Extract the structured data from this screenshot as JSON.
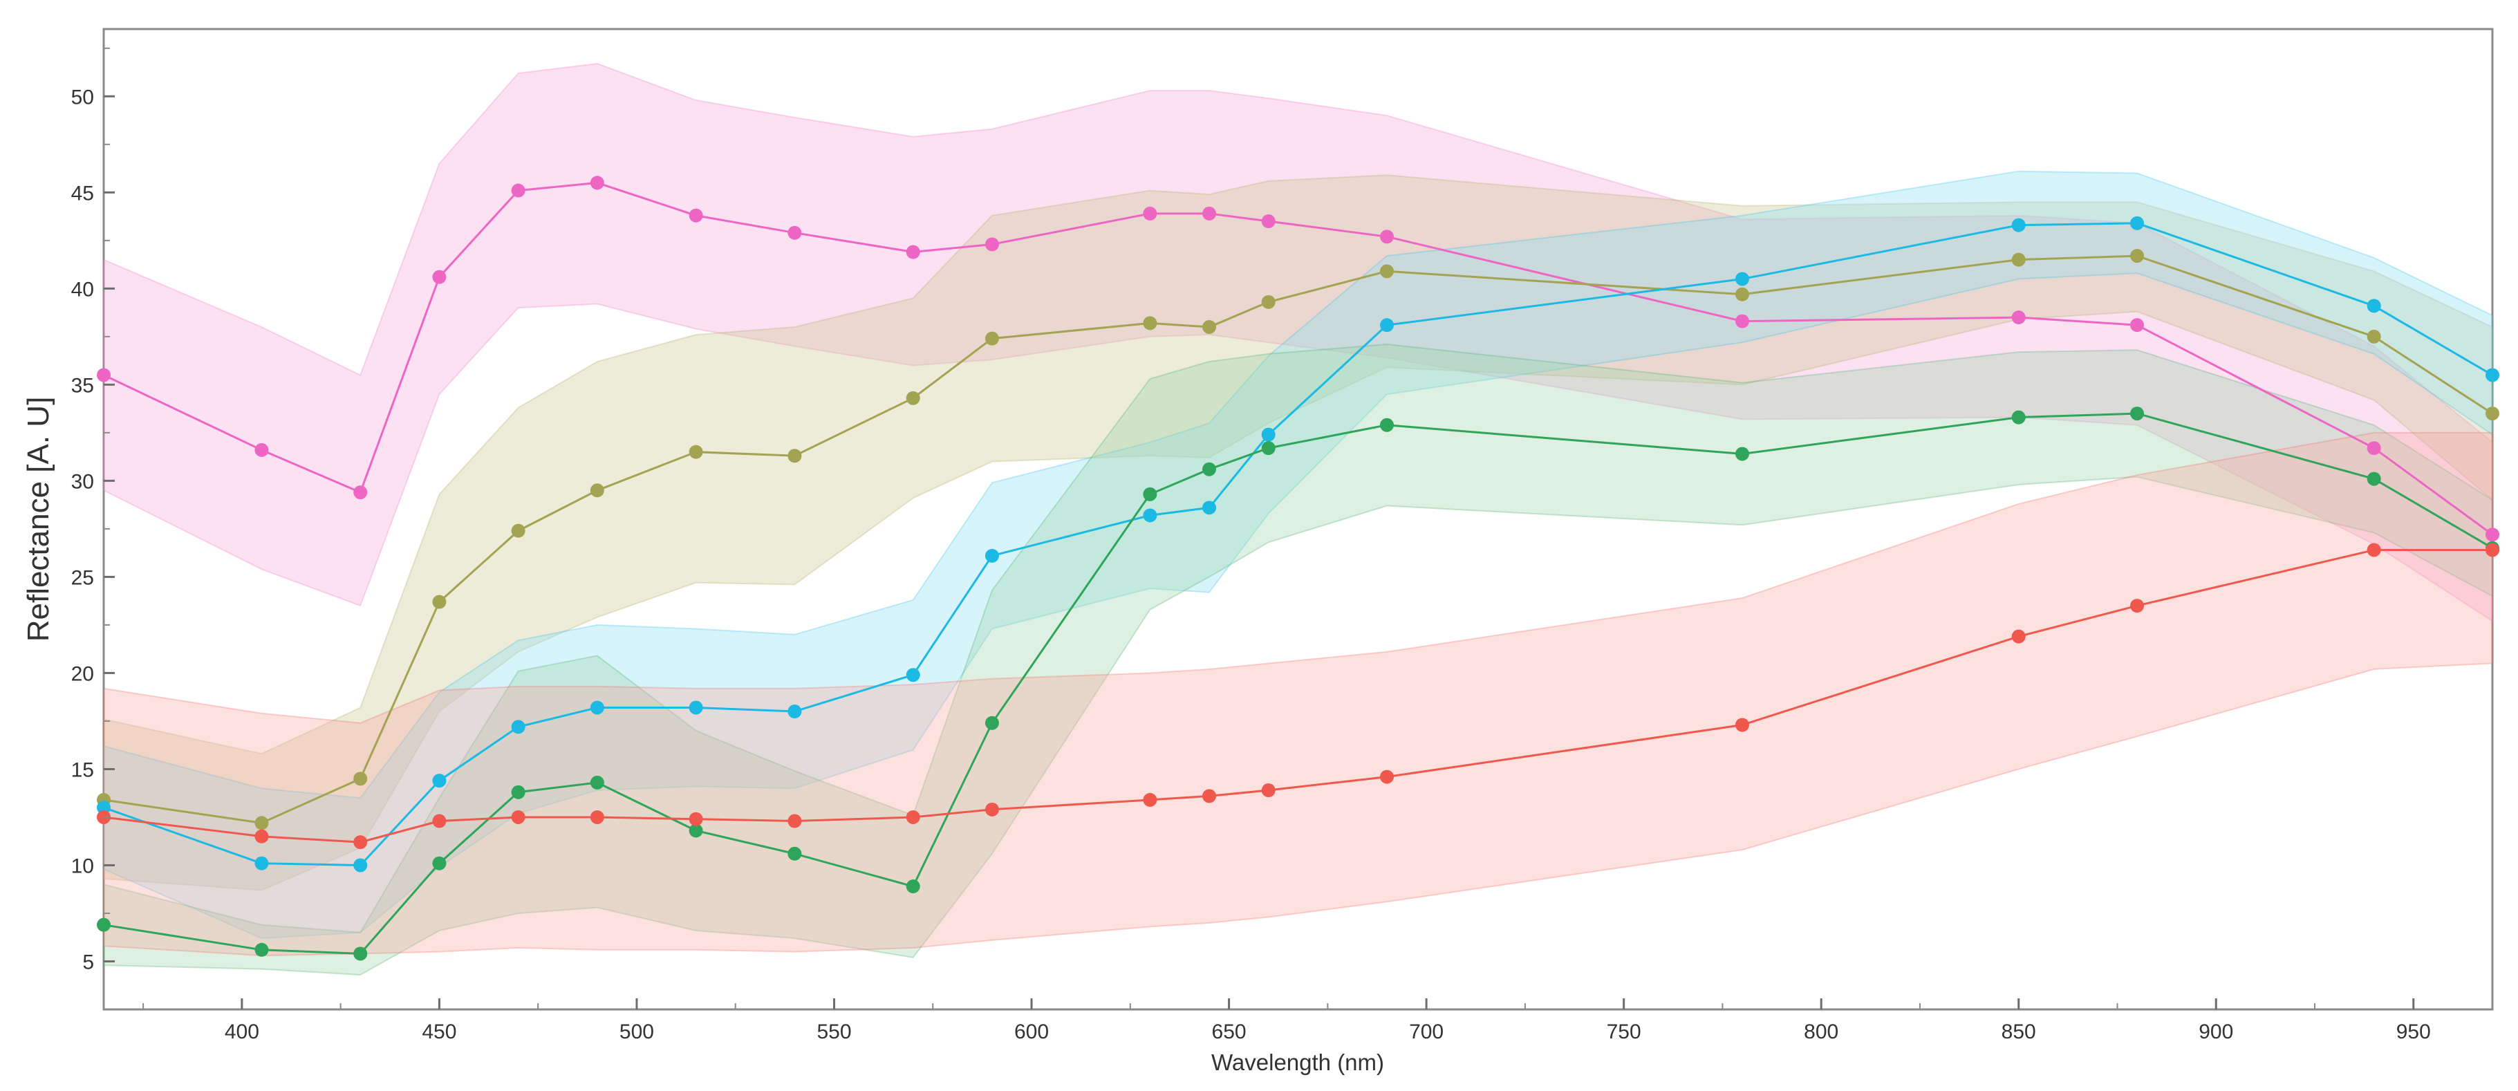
{
  "chart_data": {
    "type": "line",
    "title": "",
    "xlabel": "Wavelength (nm)",
    "ylabel": "Reflectance [A. U]",
    "xlim": [
      365,
      970
    ],
    "ylim": [
      2.5,
      53.5
    ],
    "x_ticks": [
      400,
      450,
      500,
      550,
      600,
      650,
      700,
      750,
      800,
      850,
      900,
      950
    ],
    "y_ticks": [
      5,
      10,
      15,
      20,
      25,
      30,
      35,
      40,
      45,
      50
    ],
    "grid": false,
    "legend": "none",
    "series": [
      {
        "name": "pink",
        "color": "#ee66c4",
        "fill": "#f7a8dc",
        "x": [
          365,
          405,
          430,
          450,
          470,
          490,
          515,
          540,
          570,
          590,
          630,
          645,
          660,
          690,
          780,
          850,
          880,
          940,
          970
        ],
        "y": [
          35.5,
          31.6,
          29.4,
          40.6,
          45.1,
          45.5,
          43.8,
          42.9,
          41.9,
          42.3,
          43.9,
          43.9,
          43.5,
          42.7,
          38.3,
          38.5,
          38.1,
          31.7,
          27.2
        ],
        "upper": [
          41.5,
          38.0,
          35.5,
          46.5,
          51.2,
          51.7,
          49.8,
          48.9,
          47.9,
          48.3,
          50.3,
          50.3,
          49.9,
          49.0,
          43.6,
          43.8,
          43.4,
          37.0,
          32.0
        ],
        "lower": [
          29.5,
          25.4,
          23.5,
          34.5,
          39.0,
          39.2,
          37.9,
          37.0,
          36.0,
          36.3,
          37.5,
          37.6,
          37.2,
          36.4,
          33.2,
          33.3,
          32.9,
          26.7,
          22.7
        ]
      },
      {
        "name": "olive",
        "color": "#a3a452",
        "fill": "#c8c88e",
        "x": [
          365,
          405,
          430,
          450,
          470,
          490,
          515,
          540,
          570,
          590,
          630,
          645,
          660,
          690,
          780,
          850,
          880,
          940,
          970
        ],
        "y": [
          13.4,
          12.2,
          14.5,
          23.7,
          27.4,
          29.5,
          31.5,
          31.3,
          34.3,
          37.4,
          38.2,
          38.0,
          39.3,
          40.9,
          39.7,
          41.5,
          41.7,
          37.5,
          33.5
        ],
        "upper": [
          17.6,
          15.8,
          18.2,
          29.3,
          33.8,
          36.2,
          37.6,
          38.0,
          39.5,
          43.8,
          45.1,
          44.9,
          45.6,
          45.9,
          44.3,
          44.5,
          44.5,
          40.9,
          38.0
        ],
        "lower": [
          9.3,
          8.7,
          10.9,
          18.0,
          21.1,
          22.9,
          24.7,
          24.6,
          29.1,
          31.0,
          31.3,
          31.2,
          33.0,
          35.9,
          35.0,
          38.4,
          38.8,
          34.2,
          29.0
        ]
      },
      {
        "name": "cyan",
        "color": "#1bb9e3",
        "fill": "#8fe0f4",
        "x": [
          365,
          405,
          430,
          450,
          470,
          490,
          515,
          540,
          570,
          590,
          630,
          645,
          660,
          690,
          780,
          850,
          880,
          940,
          970
        ],
        "y": [
          13.0,
          10.1,
          10.0,
          14.4,
          17.2,
          18.2,
          18.2,
          18.0,
          19.9,
          26.1,
          28.2,
          28.6,
          32.4,
          38.1,
          40.5,
          43.3,
          43.4,
          39.1,
          35.5
        ],
        "upper": [
          16.2,
          14.0,
          13.5,
          19.0,
          21.7,
          22.5,
          22.3,
          22.0,
          23.8,
          29.9,
          32.0,
          33.0,
          36.5,
          41.7,
          43.8,
          46.1,
          46.0,
          41.6,
          38.6
        ],
        "lower": [
          9.8,
          6.2,
          6.5,
          9.9,
          12.7,
          13.9,
          14.1,
          14.0,
          16.0,
          22.3,
          24.4,
          24.2,
          28.3,
          34.5,
          37.2,
          40.5,
          40.8,
          36.6,
          32.4
        ]
      },
      {
        "name": "green",
        "color": "#2ea55a",
        "fill": "#9dd4a8",
        "x": [
          365,
          405,
          430,
          450,
          470,
          490,
          515,
          540,
          570,
          590,
          630,
          645,
          660,
          690,
          780,
          850,
          880,
          940,
          970
        ],
        "y": [
          6.9,
          5.6,
          5.4,
          10.1,
          13.8,
          14.3,
          11.8,
          10.6,
          8.9,
          17.4,
          29.3,
          30.6,
          31.7,
          32.9,
          31.4,
          33.3,
          33.5,
          30.1,
          26.5
        ],
        "upper": [
          9.0,
          6.9,
          6.5,
          13.5,
          20.1,
          20.9,
          17.0,
          14.9,
          12.6,
          24.3,
          35.3,
          36.2,
          36.6,
          37.1,
          35.1,
          36.7,
          36.8,
          32.9,
          29.0
        ],
        "lower": [
          4.8,
          4.6,
          4.3,
          6.6,
          7.5,
          7.8,
          6.6,
          6.2,
          5.2,
          10.6,
          23.3,
          25.0,
          26.8,
          28.7,
          27.7,
          29.8,
          30.2,
          27.3,
          24.0
        ]
      },
      {
        "name": "red",
        "color": "#f0584e",
        "fill": "#f9a9a2",
        "x": [
          365,
          405,
          430,
          450,
          470,
          490,
          515,
          540,
          570,
          590,
          630,
          645,
          660,
          690,
          780,
          850,
          880,
          940,
          970
        ],
        "y": [
          12.5,
          11.5,
          11.2,
          12.3,
          12.5,
          12.5,
          12.4,
          12.3,
          12.5,
          12.9,
          13.4,
          13.6,
          13.9,
          14.6,
          17.3,
          21.9,
          23.5,
          26.4,
          26.4
        ],
        "upper": [
          19.2,
          17.9,
          17.4,
          19.1,
          19.3,
          19.3,
          19.2,
          19.2,
          19.4,
          19.7,
          20.0,
          20.2,
          20.5,
          21.1,
          23.9,
          28.8,
          30.3,
          32.5,
          32.5
        ],
        "lower": [
          5.8,
          5.3,
          5.4,
          5.5,
          5.7,
          5.6,
          5.6,
          5.5,
          5.7,
          6.1,
          6.8,
          7.0,
          7.3,
          8.1,
          10.8,
          15.0,
          16.7,
          20.2,
          20.5
        ]
      }
    ]
  }
}
